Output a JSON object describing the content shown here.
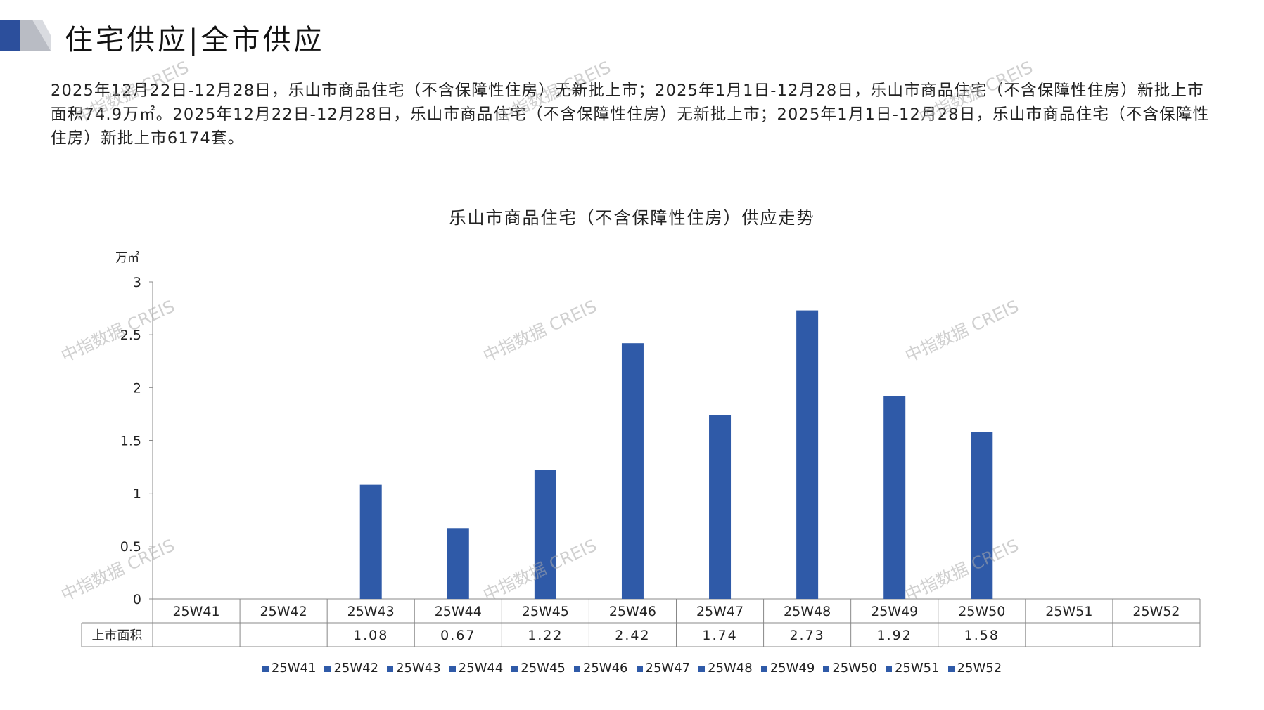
{
  "header": {
    "title": "住宅供应|全市供应"
  },
  "summary": "2025年12月22日-12月28日，乐山市商品住宅（不含保障性住房）无新批上市；2025年1月1日-12月28日，乐山市商品住宅（不含保障性住房）新批上市面积74.9万㎡。2025年12月22日-12月28日，乐山市商品住宅（不含保障性住房）无新批上市；2025年1月1日-12月28日，乐山市商品住宅（不含保障性住房）新批上市6174套。",
  "watermark": "中指数据 CREIS",
  "colors": {
    "bar": "#2f5aa8",
    "accent": "#2c4f9c"
  },
  "chart_data": {
    "type": "bar",
    "title": "乐山市商品住宅（不含保障性住房）供应走势",
    "ylabel": "万㎡",
    "xlabel": "",
    "ylim": [
      0,
      3
    ],
    "yticks": [
      "0",
      "0.5",
      "1",
      "1.5",
      "2",
      "2.5",
      "3"
    ],
    "categories": [
      "25W41",
      "25W42",
      "25W43",
      "25W44",
      "25W45",
      "25W46",
      "25W47",
      "25W48",
      "25W49",
      "25W50",
      "25W51",
      "25W52"
    ],
    "series": [
      {
        "name": "上市面积",
        "values": [
          null,
          null,
          1.08,
          0.67,
          1.22,
          2.42,
          1.74,
          2.73,
          1.92,
          1.58,
          null,
          null
        ]
      }
    ],
    "table_row_label": "上市面积",
    "table_values": [
      "",
      "",
      "1.08",
      "0.67",
      "1.22",
      "2.42",
      "1.74",
      "2.73",
      "1.92",
      "1.58",
      "",
      ""
    ],
    "legend": [
      "25W41",
      "25W42",
      "25W43",
      "25W44",
      "25W45",
      "25W46",
      "25W47",
      "25W48",
      "25W49",
      "25W50",
      "25W51",
      "25W52"
    ],
    "legend_position": "bottom"
  }
}
